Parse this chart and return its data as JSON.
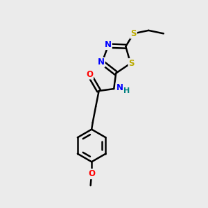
{
  "background_color": "#ebebeb",
  "bond_color": "#000000",
  "atom_colors": {
    "N": "#0000ff",
    "S": "#bbaa00",
    "S_ring": "#bbaa00",
    "O": "#ff0000",
    "H": "#008080",
    "C": "#000000"
  },
  "figsize": [
    3.0,
    3.0
  ],
  "dpi": 100,
  "xlim": [
    0,
    10
  ],
  "ylim": [
    0,
    10
  ]
}
